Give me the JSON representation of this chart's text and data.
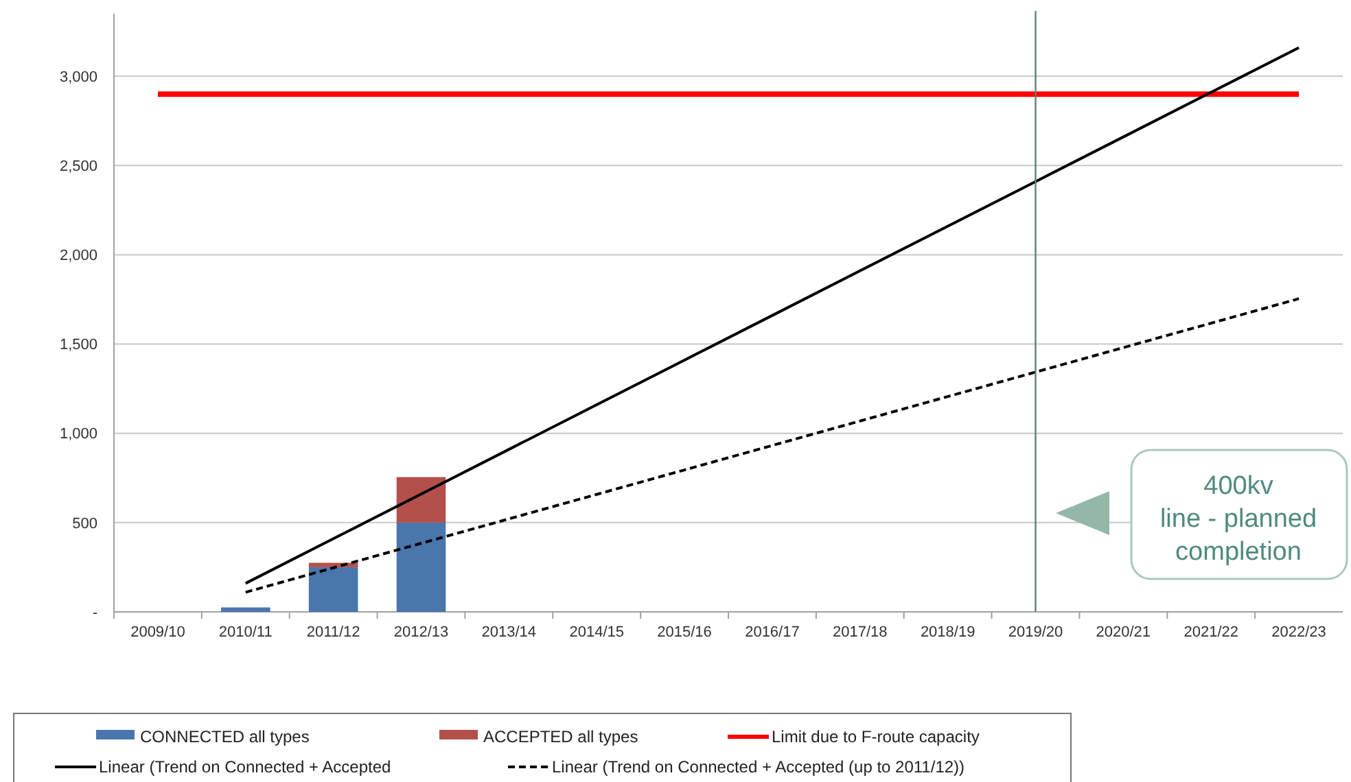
{
  "chart_data": {
    "type": "bar",
    "stacked": true,
    "grid": "y",
    "legend": "bottom",
    "categories": [
      "2009/10",
      "2010/11",
      "2011/12",
      "2012/13",
      "2013/14",
      "2014/15",
      "2015/16",
      "2016/17",
      "2017/18",
      "2018/19",
      "2019/20",
      "2020/21",
      "2021/22",
      "2022/23"
    ],
    "ylim": [
      0,
      3350
    ],
    "yticks": [
      {
        "value": 0,
        "label": "-"
      },
      {
        "value": 500,
        "label": "500"
      },
      {
        "value": 1000,
        "label": "1,000"
      },
      {
        "value": 1500,
        "label": "1,500"
      },
      {
        "value": 2000,
        "label": "2,000"
      },
      {
        "value": 2500,
        "label": "2,500"
      },
      {
        "value": 3000,
        "label": "3,000"
      }
    ],
    "series": [
      {
        "name": "CONNECTED all types",
        "color": "#4a76ae",
        "values": [
          0,
          25,
          250,
          500,
          null,
          null,
          null,
          null,
          null,
          null,
          null,
          null,
          null,
          null
        ]
      },
      {
        "name": "ACCEPTED all types",
        "color": "#b4504c",
        "values": [
          0,
          0,
          25,
          255,
          null,
          null,
          null,
          null,
          null,
          null,
          null,
          null,
          null,
          null
        ]
      },
      {
        "name": "Limit due to F-route capacity",
        "type": "line",
        "color": "#ff0000",
        "line_style": "solid",
        "values": [
          2900,
          2900,
          2900,
          2900,
          2900,
          2900,
          2900,
          2900,
          2900,
          2900,
          2900,
          2900,
          2900,
          2900
        ]
      },
      {
        "name": "Linear (Trend on Connected + Accepted",
        "type": "line",
        "color": "#000000",
        "line_style": "solid",
        "values": [
          null,
          160,
          410,
          660,
          910,
          1160,
          1410,
          1660,
          1910,
          2160,
          2410,
          2660,
          2910,
          3160
        ]
      },
      {
        "name": "Linear (Trend on Connected + Accepted (up to 2011/12))",
        "type": "line",
        "color": "#000000",
        "line_style": "dashed",
        "values": [
          null,
          110,
          247,
          384,
          521,
          658,
          795,
          932,
          1069,
          1206,
          1343,
          1480,
          1617,
          1754
        ]
      }
    ],
    "ref_lines": [
      {
        "axis": "x",
        "value": "2019/20",
        "color": "#5f7f78"
      }
    ],
    "annotations": [
      "400kv line - planned completion"
    ]
  }
}
